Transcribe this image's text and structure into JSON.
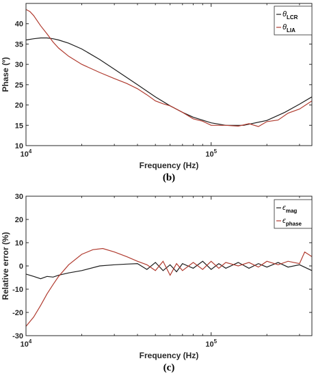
{
  "chart_data": [
    {
      "type": "line",
      "caption": "(b)",
      "xlabel": "Frequency (Hz)",
      "ylabel": "Phase (º)",
      "xscale": "log",
      "xlim": [
        10000,
        350000
      ],
      "ylim": [
        10,
        45
      ],
      "xtick_values": [
        10000,
        100000
      ],
      "xtick_labels": [
        {
          "base": "10",
          "exp": "4"
        },
        {
          "base": "10",
          "exp": "5"
        }
      ],
      "yticks": [
        10,
        15,
        20,
        25,
        30,
        35,
        40
      ],
      "grid": false,
      "legend_position": "top-right",
      "series": [
        {
          "name": "θLCR",
          "legend": {
            "symbol": "θ",
            "sub": "LCR"
          },
          "color": "#1a1a1a",
          "x": [
            10000,
            11000,
            12000,
            13000,
            14000,
            15000,
            17000,
            20000,
            25000,
            30000,
            40000,
            50000,
            60000,
            70000,
            80000,
            100000,
            120000,
            150000,
            200000,
            250000,
            300000,
            350000
          ],
          "y": [
            36.0,
            36.3,
            36.5,
            36.5,
            36.3,
            36.0,
            35.2,
            33.8,
            31.2,
            28.8,
            25.0,
            22.0,
            19.8,
            18.2,
            17.0,
            15.6,
            15.0,
            15.0,
            16.2,
            18.2,
            20.2,
            22.0
          ]
        },
        {
          "name": "θLIA",
          "legend": {
            "symbol": "θ",
            "sub": "LIA"
          },
          "color": "#b03a2e",
          "x": [
            10000,
            10500,
            11000,
            12000,
            13000,
            14000,
            15000,
            17000,
            20000,
            25000,
            30000,
            35000,
            40000,
            45000,
            50000,
            55000,
            60000,
            70000,
            80000,
            90000,
            100000,
            120000,
            140000,
            160000,
            180000,
            200000,
            230000,
            260000,
            300000,
            350000
          ],
          "y": [
            43.5,
            43.0,
            42.0,
            39.5,
            37.5,
            35.5,
            34.0,
            32.0,
            30.0,
            28.0,
            26.5,
            25.3,
            24.0,
            22.5,
            21.0,
            20.3,
            19.8,
            18.2,
            16.6,
            16.0,
            15.0,
            15.0,
            14.8,
            15.4,
            14.7,
            15.9,
            16.3,
            18.0,
            19.0,
            21.0
          ]
        }
      ]
    },
    {
      "type": "line",
      "caption": "(c)",
      "xlabel": "Frequency (Hz)",
      "ylabel": "Relative error (%)",
      "xscale": "log",
      "xlim": [
        10000,
        350000
      ],
      "ylim": [
        -30,
        30
      ],
      "xtick_values": [
        10000,
        100000
      ],
      "xtick_labels": [
        {
          "base": "10",
          "exp": "4"
        },
        {
          "base": "10",
          "exp": "5"
        }
      ],
      "yticks": [
        -30,
        -20,
        -10,
        0,
        10,
        20,
        30
      ],
      "grid": false,
      "legend_position": "top-right",
      "series": [
        {
          "name": "εmag",
          "legend": {
            "symbol": "ϵ",
            "sub": "mag"
          },
          "color": "#1a1a1a",
          "x": [
            10000,
            11000,
            12000,
            13000,
            14000,
            15000,
            17000,
            20000,
            25000,
            30000,
            35000,
            40000,
            45000,
            50000,
            55000,
            60000,
            65000,
            70000,
            80000,
            90000,
            100000,
            110000,
            120000,
            140000,
            160000,
            180000,
            200000,
            230000,
            260000,
            300000,
            350000
          ],
          "y": [
            -3.5,
            -4.5,
            -5.5,
            -4.5,
            -4.8,
            -4.0,
            -3.0,
            -2.0,
            0.0,
            0.5,
            0.8,
            1.0,
            -1.5,
            1.5,
            -2.0,
            0.5,
            -2.5,
            1.0,
            -1.0,
            2.0,
            -1.5,
            1.0,
            -1.0,
            1.5,
            -1.0,
            1.0,
            -0.5,
            1.5,
            -0.5,
            0.5,
            -2.0
          ]
        },
        {
          "name": "εphase",
          "legend": {
            "symbol": "ϵ",
            "sub": "phase"
          },
          "color": "#b03a2e",
          "x": [
            10000,
            11000,
            12000,
            13000,
            14000,
            15000,
            17000,
            20000,
            23000,
            26000,
            30000,
            35000,
            40000,
            45000,
            50000,
            55000,
            60000,
            65000,
            70000,
            80000,
            90000,
            100000,
            110000,
            120000,
            140000,
            160000,
            180000,
            200000,
            230000,
            260000,
            300000,
            320000,
            350000
          ],
          "y": [
            -26.0,
            -22.0,
            -17.0,
            -12.0,
            -8.0,
            -4.5,
            0.5,
            5.0,
            7.0,
            7.5,
            6.0,
            4.0,
            2.0,
            0.5,
            -2.0,
            2.0,
            -4.0,
            1.0,
            -2.0,
            1.5,
            -1.5,
            2.0,
            -1.0,
            1.5,
            0.0,
            1.5,
            -0.5,
            2.0,
            0.5,
            2.0,
            1.0,
            6.0,
            4.0
          ]
        }
      ]
    }
  ]
}
